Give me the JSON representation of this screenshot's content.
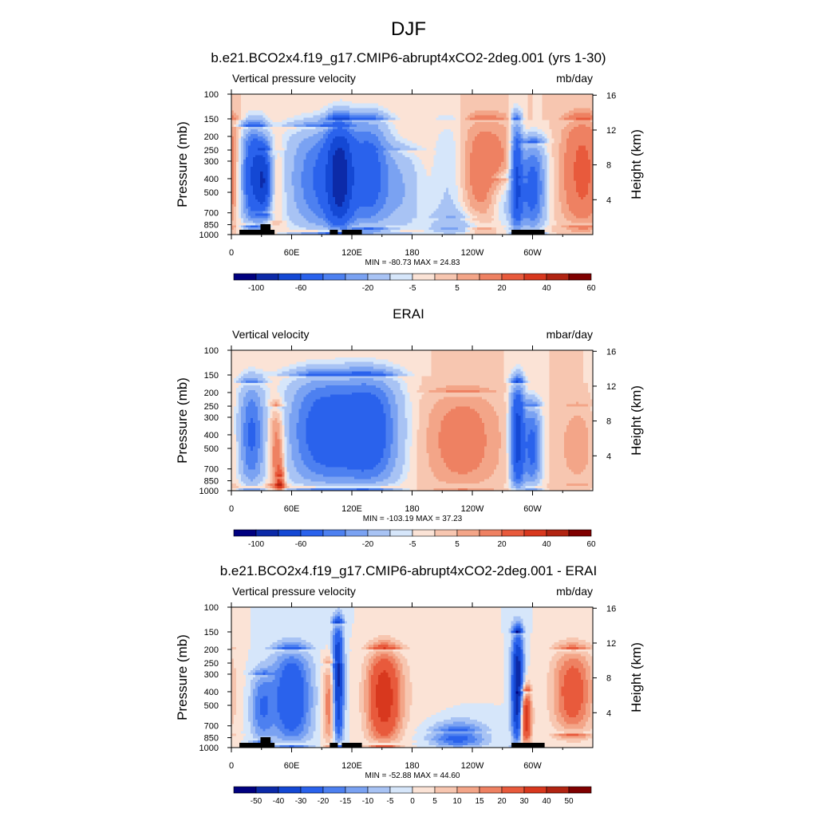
{
  "figure": {
    "title": "DJF"
  },
  "colors": {
    "scale": [
      "#00007f",
      "#0c2aa8",
      "#1448d4",
      "#2a62ec",
      "#4d80f0",
      "#7aa2f2",
      "#a8c3f4",
      "#d6e6fa",
      "#fbe3d6",
      "#f7c6b0",
      "#f3a588",
      "#ee8162",
      "#e85a3c",
      "#d8381e",
      "#b12412",
      "#7f0000"
    ]
  },
  "chart_data": [
    {
      "type": "heatmap",
      "title": "b.e21.BCO2x4.f19_g17.CMIP6-abrupt4xCO2-2deg.001 (yrs 1-30)",
      "left_label": "Vertical pressure velocity",
      "units": "mb/day",
      "ylabel": "Pressure (mb)",
      "ylabel_right": "Height (km)",
      "x_ticks": [
        "0",
        "60E",
        "120E",
        "180",
        "120W",
        "60W"
      ],
      "x_tick_values": [
        0,
        60,
        120,
        180,
        240,
        300
      ],
      "x_range": [
        0,
        360
      ],
      "y_ticks": [
        "100",
        "150",
        "200",
        "250",
        "300",
        "400",
        "500",
        "700",
        "850",
        "1000"
      ],
      "y_tick_values": [
        100,
        150,
        200,
        250,
        300,
        400,
        500,
        700,
        850,
        1000
      ],
      "y_range": [
        100,
        1000
      ],
      "y_scale": "log",
      "height_ticks": [
        "4",
        "8",
        "12",
        "16"
      ],
      "height_tick_values": [
        4,
        8,
        12,
        16
      ],
      "stats": "MIN = -80.73  MAX =  24.83",
      "colorbar_labels": [
        "-100",
        "-60",
        "-20",
        "-5",
        "5",
        "20",
        "40",
        "60"
      ],
      "colorbar_levels": [
        -120,
        -100,
        -80,
        -60,
        -40,
        -30,
        -20,
        -10,
        -5,
        0,
        5,
        10,
        20,
        30,
        40,
        50,
        60
      ],
      "land_bands": [
        [
          8,
          43
        ],
        [
          98,
          106
        ],
        [
          110,
          130
        ],
        [
          279,
          312
        ]
      ],
      "features": [
        {
          "lon": 22,
          "p0": 850,
          "p1": 170,
          "amp": -62,
          "sw": 9,
          "topw": 2.2
        },
        {
          "lon": 33,
          "p0": 700,
          "p1": 250,
          "amp": -48,
          "sw": 5,
          "topw": 2.2
        },
        {
          "lon": 45,
          "p0": 800,
          "p1": 250,
          "amp": 10,
          "sw": 6,
          "topw": 2.2
        },
        {
          "lon": 90,
          "p0": 950,
          "p1": 170,
          "amp": -42,
          "sw": 24,
          "topw": 2.2
        },
        {
          "lon": 108,
          "p0": 950,
          "p1": 150,
          "amp": -62,
          "sw": 9,
          "topw": 2.2
        },
        {
          "lon": 138,
          "p0": 900,
          "p1": 150,
          "amp": -45,
          "sw": 14,
          "topw": 2.2
        },
        {
          "lon": 170,
          "p0": 950,
          "p1": 250,
          "amp": -18,
          "sw": 14,
          "topw": 2.2
        },
        {
          "lon": 218,
          "p0": 900,
          "p1": 150,
          "amp": -14,
          "sw": 12,
          "topw": 2.2
        },
        {
          "lon": 252,
          "p0": 900,
          "p1": 150,
          "amp": 17,
          "sw": 22,
          "topw": 2.2
        },
        {
          "lon": 274,
          "p0": 900,
          "p1": 400,
          "amp": -18,
          "sw": 12,
          "topw": 2.2
        },
        {
          "lon": 284,
          "p0": 950,
          "p1": 150,
          "amp": -55,
          "sw": 4,
          "topw": 2.2
        },
        {
          "lon": 300,
          "p0": 950,
          "p1": 220,
          "amp": -48,
          "sw": 9,
          "topw": 2.2
        },
        {
          "lon": 350,
          "p0": 850,
          "p1": 150,
          "amp": 24,
          "sw": 14,
          "topw": 2.2
        },
        {
          "lon": 222,
          "p0": 1000,
          "p1": 760,
          "amp": -18,
          "sw": 18,
          "topw": 1.5
        }
      ]
    },
    {
      "type": "heatmap",
      "title": "ERAI",
      "left_label": "Vertical velocity",
      "units": "mbar/day",
      "ylabel": "Pressure (mb)",
      "ylabel_right": "Height (km)",
      "x_ticks": [
        "0",
        "60E",
        "120E",
        "180",
        "120W",
        "60W"
      ],
      "x_tick_values": [
        0,
        60,
        120,
        180,
        240,
        300
      ],
      "x_range": [
        0,
        360
      ],
      "y_ticks": [
        "100",
        "150",
        "200",
        "250",
        "300",
        "400",
        "500",
        "700",
        "850",
        "1000"
      ],
      "y_tick_values": [
        100,
        150,
        200,
        250,
        300,
        400,
        500,
        700,
        850,
        1000
      ],
      "y_range": [
        100,
        1000
      ],
      "y_scale": "log",
      "height_ticks": [
        "4",
        "8",
        "12",
        "16"
      ],
      "height_tick_values": [
        4,
        8,
        12,
        16
      ],
      "stats": "MIN = -103.19  MAX =  37.23",
      "colorbar_labels": [
        "-100",
        "-60",
        "-20",
        "-5",
        "5",
        "20",
        "40",
        "60"
      ],
      "colorbar_levels": [
        -120,
        -100,
        -80,
        -60,
        -40,
        -30,
        -20,
        -10,
        -5,
        0,
        5,
        10,
        20,
        30,
        40,
        50,
        60
      ],
      "land_bands": [],
      "features": [
        {
          "lon": 20,
          "p0": 950,
          "p1": 170,
          "amp": -42,
          "sw": 9,
          "topw": 2.2
        },
        {
          "lon": 45,
          "p0": 900,
          "p1": 250,
          "amp": 22,
          "sw": 6,
          "topw": 2.2
        },
        {
          "lon": 48,
          "p0": 1000,
          "p1": 800,
          "amp": 37,
          "sw": 3,
          "topw": 1.5
        },
        {
          "lon": 92,
          "p0": 950,
          "p1": 150,
          "amp": -50,
          "sw": 26,
          "topw": 2.2
        },
        {
          "lon": 140,
          "p0": 950,
          "p1": 150,
          "amp": -48,
          "sw": 20,
          "topw": 2.2
        },
        {
          "lon": 230,
          "p0": 950,
          "p1": 200,
          "amp": 15,
          "sw": 26,
          "topw": 2.2
        },
        {
          "lon": 285,
          "p0": 1000,
          "p1": 170,
          "amp": -70,
          "sw": 5,
          "topw": 2.2
        },
        {
          "lon": 300,
          "p0": 950,
          "p1": 250,
          "amp": -45,
          "sw": 6,
          "topw": 2.2
        },
        {
          "lon": 345,
          "p0": 900,
          "p1": 250,
          "amp": 8,
          "sw": 14,
          "topw": 2.2
        }
      ]
    },
    {
      "type": "heatmap",
      "title": "b.e21.BCO2x4.f19_g17.CMIP6-abrupt4xCO2-2deg.001 - ERAI",
      "left_label": "Vertical pressure velocity",
      "units": "mb/day",
      "ylabel": "Pressure (mb)",
      "ylabel_right": "Height (km)",
      "x_ticks": [
        "0",
        "60E",
        "120E",
        "180",
        "120W",
        "60W"
      ],
      "x_tick_values": [
        0,
        60,
        120,
        180,
        240,
        300
      ],
      "x_range": [
        0,
        360
      ],
      "y_ticks": [
        "100",
        "150",
        "200",
        "250",
        "300",
        "400",
        "500",
        "700",
        "850",
        "1000"
      ],
      "y_tick_values": [
        100,
        150,
        200,
        250,
        300,
        400,
        500,
        700,
        850,
        1000
      ],
      "y_range": [
        100,
        1000
      ],
      "y_scale": "log",
      "height_ticks": [
        "4",
        "8",
        "12",
        "16"
      ],
      "height_tick_values": [
        4,
        8,
        12,
        16
      ],
      "stats": "MIN = -52.88  MAX =  44.60",
      "colorbar_labels": [
        "-50",
        "-40",
        "-30",
        "-20",
        "-15",
        "-10",
        "-5",
        "0",
        "5",
        "10",
        "15",
        "20",
        "30",
        "40",
        "50"
      ],
      "colorbar_levels": [
        -60,
        -50,
        -40,
        -30,
        -20,
        -15,
        -10,
        -5,
        0,
        5,
        10,
        15,
        20,
        30,
        40,
        50,
        60
      ],
      "land_bands": [
        [
          8,
          43
        ],
        [
          98,
          106
        ],
        [
          110,
          130
        ],
        [
          279,
          312
        ]
      ],
      "features": [
        {
          "lon": 60,
          "p0": 950,
          "p1": 200,
          "amp": -30,
          "sw": 14,
          "topw": 2.2
        },
        {
          "lon": 30,
          "p0": 900,
          "p1": 300,
          "amp": -18,
          "sw": 8,
          "topw": 2.2
        },
        {
          "lon": 98,
          "p0": 950,
          "p1": 250,
          "amp": 22,
          "sw": 5,
          "topw": 2.2
        },
        {
          "lon": 106,
          "p0": 950,
          "p1": 130,
          "amp": -45,
          "sw": 4,
          "topw": 2.2
        },
        {
          "lon": 152,
          "p0": 950,
          "p1": 200,
          "amp": 36,
          "sw": 12,
          "topw": 2.2
        },
        {
          "lon": 285,
          "p0": 950,
          "p1": 150,
          "amp": -52,
          "sw": 4,
          "topw": 2.2
        },
        {
          "lon": 293,
          "p0": 950,
          "p1": 400,
          "amp": 40,
          "sw": 4,
          "topw": 2.2
        },
        {
          "lon": 340,
          "p0": 800,
          "p1": 200,
          "amp": 26,
          "sw": 14,
          "topw": 2.2
        },
        {
          "lon": 225,
          "p0": 1000,
          "p1": 750,
          "amp": -24,
          "sw": 20,
          "topw": 1.5
        },
        {
          "lon": 200,
          "p0": 900,
          "p1": 200,
          "amp": 3,
          "sw": 30,
          "topw": 2.2
        }
      ]
    }
  ]
}
